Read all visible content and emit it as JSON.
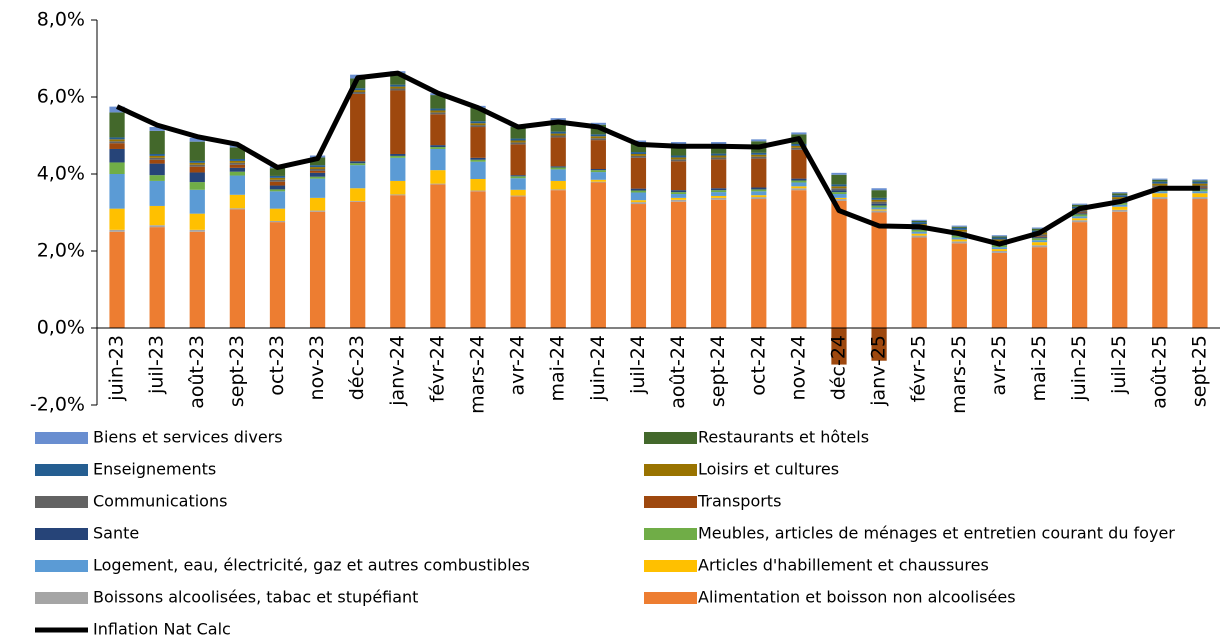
{
  "chart_data": {
    "type": "bar",
    "categories": [
      "juin-23",
      "juil-23",
      "août-23",
      "sept-23",
      "oct-23",
      "nov-23",
      "déc-23",
      "janv-24",
      "févr-24",
      "mars-24",
      "avr-24",
      "mai-24",
      "juin-24",
      "juil-24",
      "août-24",
      "sept-24",
      "oct-24",
      "nov-24",
      "déc-24",
      "janv-25",
      "févr-25",
      "mars-25",
      "avr-25",
      "mai-25",
      "juin-25",
      "juil-25",
      "août-25",
      "sept-25"
    ],
    "ylim": [
      -2,
      8
    ],
    "yticks": [
      {
        "value": -2,
        "label": "-2,0%"
      },
      {
        "value": 0,
        "label": "0,0%"
      },
      {
        "value": 2,
        "label": "2,0%"
      },
      {
        "value": 4,
        "label": "4,0%"
      },
      {
        "value": 6,
        "label": "6,0%"
      },
      {
        "value": 8,
        "label": "8,0%"
      }
    ],
    "series": [
      {
        "name": "Alimentation et boisson non alcoolisées",
        "color": "#ED7D31",
        "values": [
          2.5,
          2.62,
          2.5,
          3.08,
          2.75,
          3.02,
          3.28,
          3.45,
          3.73,
          3.55,
          3.42,
          3.58,
          3.78,
          3.22,
          3.28,
          3.33,
          3.35,
          3.58,
          3.3,
          3.0,
          2.35,
          2.2,
          1.95,
          2.1,
          2.75,
          3.02,
          3.35,
          3.35
        ]
      },
      {
        "name": "Boissons alcoolisées, tabac et stupéfiant",
        "color": "#A5A5A5",
        "values": [
          0.05,
          0.05,
          0.05,
          0.03,
          0.03,
          0.03,
          0.02,
          0.02,
          0.02,
          0.02,
          0.02,
          0.02,
          0.02,
          0.05,
          0.05,
          0.05,
          0.05,
          0.05,
          0.05,
          0.05,
          0.05,
          0.05,
          0.05,
          0.05,
          0.05,
          0.05,
          0.05,
          0.05
        ]
      },
      {
        "name": "Articles d'habillement et chaussures",
        "color": "#FFC000",
        "values": [
          0.55,
          0.5,
          0.42,
          0.35,
          0.32,
          0.33,
          0.33,
          0.35,
          0.35,
          0.3,
          0.15,
          0.22,
          0.05,
          0.05,
          0.05,
          0.05,
          0.05,
          0.05,
          0.03,
          0.03,
          0.05,
          0.05,
          0.05,
          0.08,
          0.05,
          0.08,
          0.1,
          0.1
        ]
      },
      {
        "name": "Logement, eau, électricité, gaz et autres combustibles",
        "color": "#5B9BD5",
        "values": [
          0.9,
          0.65,
          0.62,
          0.5,
          0.45,
          0.5,
          0.6,
          0.6,
          0.55,
          0.45,
          0.3,
          0.3,
          0.2,
          0.2,
          0.1,
          0.1,
          0.1,
          0.1,
          0.1,
          0.05,
          0.05,
          0.05,
          0.05,
          0.05,
          0.05,
          0.05,
          0.05,
          0.05
        ]
      },
      {
        "name": "Meubles, articles de ménages et entretien courant du foyer",
        "color": "#70AD47",
        "values": [
          0.3,
          0.15,
          0.2,
          0.1,
          0.05,
          0.05,
          0.05,
          0.05,
          0.05,
          0.05,
          0.05,
          0.05,
          0.05,
          0.05,
          0.05,
          0.05,
          0.05,
          0.05,
          0.05,
          0.05,
          0.05,
          0.05,
          0.05,
          0.05,
          0.05,
          0.05,
          0.05,
          0.05
        ]
      },
      {
        "name": "Sante",
        "color": "#264478",
        "values": [
          0.35,
          0.3,
          0.25,
          0.1,
          0.1,
          0.1,
          0.05,
          0.05,
          0.05,
          0.05,
          0.03,
          0.03,
          0.03,
          0.05,
          0.05,
          0.05,
          0.05,
          0.05,
          0.05,
          0.05,
          0.03,
          0.03,
          0.03,
          0.03,
          0.03,
          0.03,
          0.03,
          0.03
        ]
      },
      {
        "name": "Transports",
        "color": "#9E480E",
        "values": [
          0.15,
          0.1,
          0.15,
          0.08,
          0.1,
          0.05,
          1.75,
          1.65,
          0.8,
          0.8,
          0.8,
          0.75,
          0.75,
          0.8,
          0.75,
          0.75,
          0.75,
          0.75,
          -0.95,
          -0.85,
          0.02,
          0.02,
          0.02,
          0.02,
          0.02,
          0.02,
          0.02,
          0.02
        ]
      },
      {
        "name": "Communications",
        "color": "#636363",
        "values": [
          0.05,
          0.05,
          0.05,
          0.05,
          0.05,
          0.05,
          0.05,
          0.05,
          0.05,
          0.05,
          0.05,
          0.05,
          0.05,
          0.05,
          0.05,
          0.05,
          0.05,
          0.05,
          0.05,
          0.05,
          0.05,
          0.05,
          0.05,
          0.05,
          0.05,
          0.05,
          0.05,
          0.05
        ]
      },
      {
        "name": "Loisirs et cultures",
        "color": "#997300",
        "values": [
          0.05,
          0.05,
          0.05,
          0.05,
          0.05,
          0.05,
          0.05,
          0.05,
          0.05,
          0.05,
          0.05,
          0.05,
          0.05,
          0.05,
          0.05,
          0.05,
          0.05,
          0.05,
          0.05,
          0.05,
          0.05,
          0.05,
          0.05,
          0.05,
          0.05,
          0.05,
          0.05,
          0.05
        ]
      },
      {
        "name": "Enseignements",
        "color": "#255E91",
        "values": [
          0.05,
          0.05,
          0.05,
          0.05,
          0.05,
          0.05,
          0.05,
          0.05,
          0.05,
          0.05,
          0.05,
          0.05,
          0.05,
          0.05,
          0.05,
          0.05,
          0.05,
          0.05,
          0.05,
          0.05,
          0.05,
          0.05,
          0.05,
          0.05,
          0.05,
          0.05,
          0.05,
          0.05
        ]
      },
      {
        "name": "Restaurants et hôtels",
        "color": "#43682B",
        "values": [
          0.65,
          0.6,
          0.5,
          0.3,
          0.2,
          0.2,
          0.25,
          0.3,
          0.35,
          0.35,
          0.3,
          0.3,
          0.25,
          0.25,
          0.3,
          0.25,
          0.3,
          0.25,
          0.25,
          0.2,
          0.03,
          0.03,
          0.03,
          0.05,
          0.05,
          0.05,
          0.05,
          0.03
        ]
      },
      {
        "name": "Biens et services divers",
        "color": "#698ED0",
        "values": [
          0.15,
          0.1,
          0.1,
          0.05,
          0.05,
          0.05,
          0.1,
          0.05,
          0.05,
          0.05,
          0.05,
          0.05,
          0.05,
          0.05,
          0.05,
          0.05,
          0.05,
          0.05,
          0.05,
          0.05,
          0.03,
          0.03,
          0.03,
          0.03,
          0.03,
          0.03,
          0.03,
          0.03
        ]
      },
      {
        "name": "Inflation Nat Calc",
        "type": "line",
        "color": "#000000",
        "values": [
          5.75,
          5.27,
          4.97,
          4.77,
          4.17,
          4.4,
          6.5,
          6.62,
          6.1,
          5.72,
          5.22,
          5.35,
          5.22,
          4.77,
          4.72,
          4.72,
          4.7,
          4.92,
          3.05,
          2.65,
          2.63,
          2.45,
          2.18,
          2.47,
          3.1,
          3.28,
          3.63,
          3.63
        ]
      }
    ]
  }
}
